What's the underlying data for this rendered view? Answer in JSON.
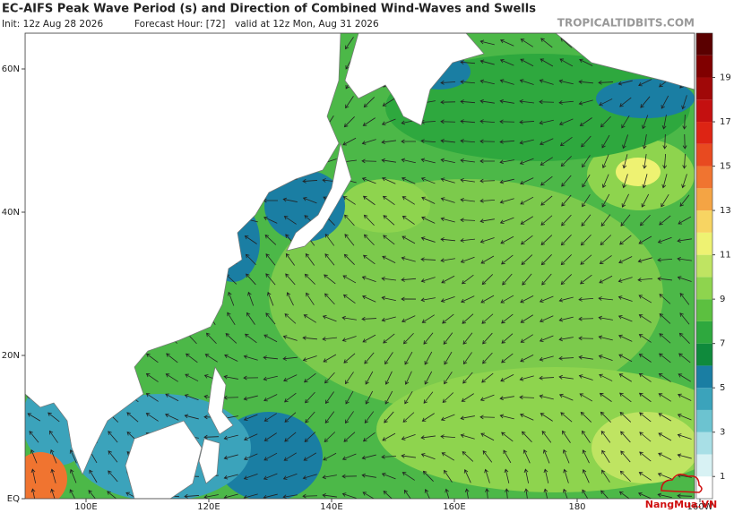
{
  "header": {
    "title": "EC-AIFS Peak Wave Period (s) and Direction of Combined Wind-Waves and Swells",
    "init": "Init: 12z Aug 28 2026",
    "forecast_hour": "Forecast Hour: [72]",
    "valid": "valid at 12z Mon, Aug 31 2026",
    "site": "TROPICALTIDBITS.COM"
  },
  "map": {
    "lat_labels": [
      "60N",
      "40N",
      "20N",
      "EQ"
    ],
    "lon_labels": [
      "100E",
      "120E",
      "140E",
      "160E",
      "180",
      "160W"
    ]
  },
  "colorbar": {
    "range": [
      0,
      21
    ],
    "ticks": [
      1,
      3,
      5,
      7,
      9,
      11,
      13,
      15,
      17,
      19
    ],
    "colors": [
      "#ffffff",
      "#d8f2f4",
      "#a8dfe6",
      "#6cc3d0",
      "#3ba3bb",
      "#1a7ea3",
      "#0f8a3c",
      "#2ea83e",
      "#5cc040",
      "#8ed44e",
      "#bfe462",
      "#eef272",
      "#f7d462",
      "#f4a444",
      "#f07430",
      "#e84a20",
      "#dd2414",
      "#c41010",
      "#a00808",
      "#800000",
      "#5a0000"
    ]
  },
  "watermark": "NangMua.VN"
}
